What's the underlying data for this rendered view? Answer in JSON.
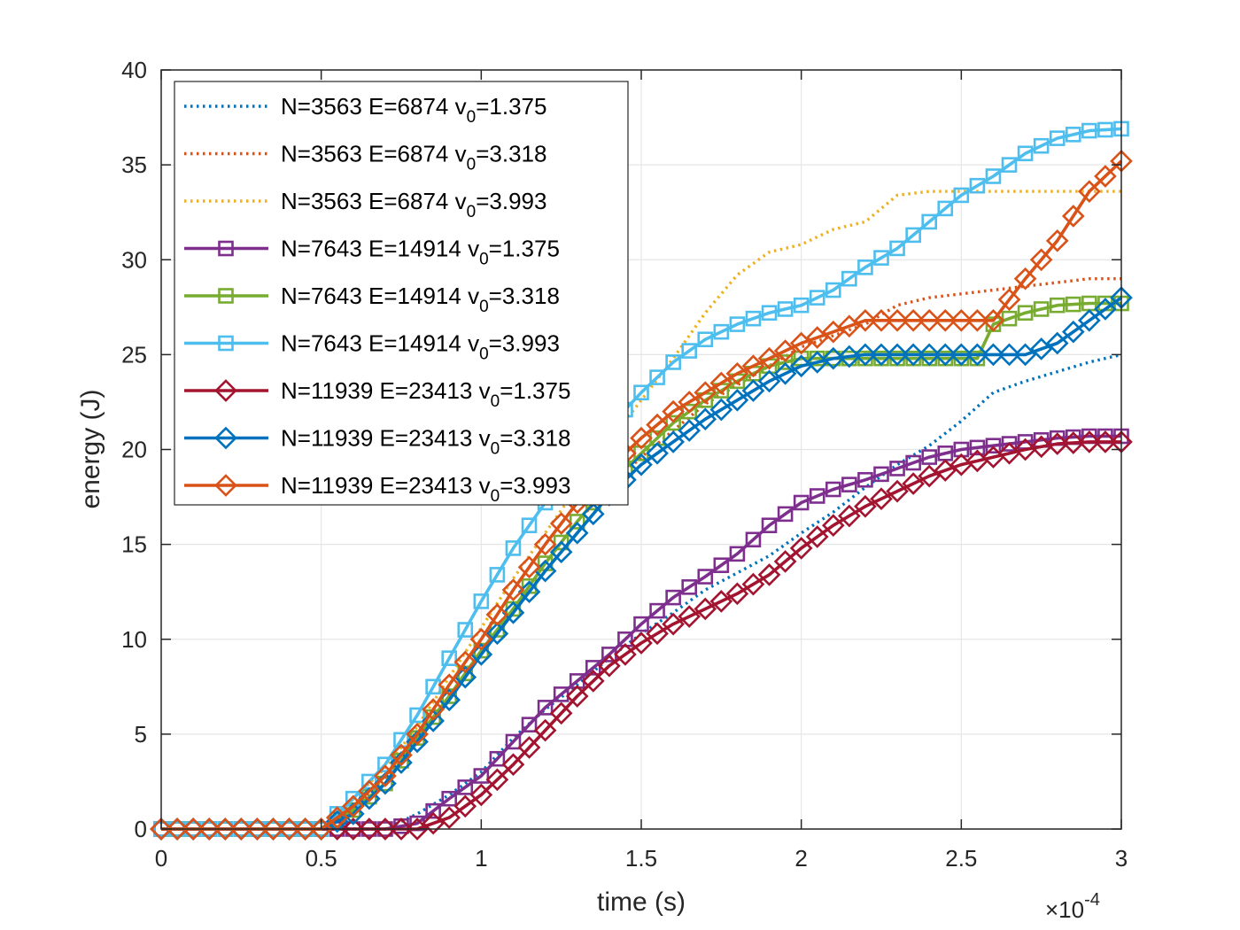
{
  "chart_data": {
    "type": "line",
    "xlabel": "time (s)",
    "ylabel": "energy (J)",
    "x_multiplier_label": "×10",
    "x_multiplier_exponent": "-4",
    "xlim": [
      0,
      3
    ],
    "ylim": [
      0,
      40
    ],
    "xticks": [
      0,
      0.5,
      1,
      1.5,
      2,
      2.5,
      3
    ],
    "xtick_labels": [
      "0",
      "0.5",
      "1",
      "1.5",
      "2",
      "2.5",
      "3"
    ],
    "yticks": [
      0,
      5,
      10,
      15,
      20,
      25,
      30,
      35,
      40
    ],
    "ytick_labels": [
      "0",
      "5",
      "10",
      "15",
      "20",
      "25",
      "30",
      "35",
      "40"
    ],
    "grid": true,
    "legend_position": "top-left",
    "series": [
      {
        "name": "N=3563 E=6874 v0=1.375",
        "label_main": "N=3563 E=6874 v",
        "label_sub": "0",
        "label_tail": "=1.375",
        "color": "#0072BD",
        "style": "dotted",
        "marker": "none",
        "x": [
          0,
          0.5,
          0.7,
          0.8,
          0.9,
          1.0,
          1.1,
          1.2,
          1.3,
          1.4,
          1.5,
          1.6,
          1.7,
          1.8,
          1.9,
          2.0,
          2.1,
          2.2,
          2.3,
          2.4,
          2.5,
          2.6,
          2.7,
          2.8,
          2.9,
          3.0
        ],
        "y": [
          0,
          0,
          0,
          0.8,
          1.8,
          3.0,
          4.8,
          6.3,
          7.6,
          9.0,
          10.3,
          11.4,
          12.6,
          13.5,
          14.4,
          15.6,
          16.7,
          18.0,
          19.2,
          20.2,
          21.5,
          23.0,
          23.6,
          24.1,
          24.6,
          25.0
        ]
      },
      {
        "name": "N=3563 E=6874 v0=3.318",
        "label_main": "N=3563 E=6874 v",
        "label_sub": "0",
        "label_tail": "=3.318",
        "color": "#D95319",
        "style": "dotted",
        "marker": "none",
        "x": [
          0,
          0.5,
          0.6,
          0.7,
          0.8,
          0.9,
          1.0,
          1.1,
          1.2,
          1.3,
          1.4,
          1.5,
          1.6,
          1.7,
          1.8,
          1.9,
          2.0,
          2.1,
          2.2,
          2.3,
          2.4,
          2.5,
          2.6,
          2.7,
          2.8,
          2.9,
          3.0
        ],
        "y": [
          0,
          0,
          1.2,
          2.6,
          4.6,
          7.0,
          9.2,
          11.6,
          14.0,
          16.2,
          18.0,
          19.6,
          21.0,
          22.4,
          23.4,
          24.4,
          25.4,
          26.0,
          26.6,
          27.6,
          28.0,
          28.2,
          28.4,
          28.6,
          28.8,
          29.0,
          29.0
        ]
      },
      {
        "name": "N=3563 E=6874 v0=3.993",
        "label_main": "N=3563 E=6874 v",
        "label_sub": "0",
        "label_tail": "=3.993",
        "color": "#EDB120",
        "style": "dotted",
        "marker": "none",
        "x": [
          0,
          0.5,
          0.6,
          0.7,
          0.8,
          0.9,
          1.0,
          1.1,
          1.2,
          1.3,
          1.4,
          1.5,
          1.6,
          1.7,
          1.8,
          1.9,
          2.0,
          2.1,
          2.2,
          2.3,
          2.4,
          2.5,
          2.6,
          2.7,
          2.8,
          2.9,
          3.0
        ],
        "y": [
          0,
          0,
          1.6,
          3.2,
          5.4,
          8.0,
          10.6,
          13.2,
          15.6,
          18.0,
          20.4,
          22.6,
          24.8,
          27.2,
          29.2,
          30.4,
          30.8,
          31.6,
          32.0,
          33.4,
          33.6,
          33.6,
          33.6,
          33.6,
          33.6,
          33.6,
          33.6
        ]
      },
      {
        "name": "N=7643 E=14914 v0=1.375",
        "label_main": "N=7643 E=14914 v",
        "label_sub": "0",
        "label_tail": "=1.375",
        "color": "#7E2F8E",
        "style": "solid",
        "marker": "square",
        "x": [
          0,
          0.5,
          0.6,
          0.7,
          0.8,
          0.9,
          1.0,
          1.1,
          1.2,
          1.3,
          1.4,
          1.5,
          1.6,
          1.7,
          1.8,
          1.9,
          2.0,
          2.1,
          2.2,
          2.3,
          2.4,
          2.5,
          2.6,
          2.7,
          2.8,
          2.9,
          3.0
        ],
        "y": [
          0,
          0,
          0,
          0,
          0.3,
          1.6,
          2.8,
          4.6,
          6.4,
          7.8,
          9.2,
          10.8,
          12.2,
          13.3,
          14.5,
          16.0,
          17.2,
          17.9,
          18.4,
          19.0,
          19.6,
          20.0,
          20.2,
          20.4,
          20.6,
          20.7,
          20.7
        ]
      },
      {
        "name": "N=7643 E=14914 v0=3.318",
        "label_main": "N=7643 E=14914 v",
        "label_sub": "0",
        "label_tail": "=3.318",
        "color": "#77AC30",
        "style": "solid",
        "marker": "square",
        "x": [
          0,
          0.5,
          0.6,
          0.7,
          0.8,
          0.9,
          1.0,
          1.1,
          1.2,
          1.3,
          1.4,
          1.5,
          1.6,
          1.7,
          1.8,
          1.9,
          2.0,
          2.1,
          2.2,
          2.3,
          2.4,
          2.5,
          2.55,
          2.6,
          2.7,
          2.8,
          2.9,
          3.0
        ],
        "y": [
          0,
          0,
          1.0,
          2.4,
          4.8,
          7.0,
          9.4,
          11.6,
          14.0,
          16.2,
          18.2,
          19.8,
          21.4,
          22.6,
          23.6,
          24.4,
          24.8,
          24.8,
          24.8,
          24.8,
          24.8,
          24.8,
          24.8,
          26.6,
          27.2,
          27.6,
          27.7,
          27.7
        ]
      },
      {
        "name": "N=7643 E=14914 v0=3.993",
        "label_main": "N=7643 E=14914 v",
        "label_sub": "0",
        "label_tail": "=3.993",
        "color": "#4DBEEE",
        "style": "solid",
        "marker": "square",
        "x": [
          0,
          0.5,
          0.6,
          0.7,
          0.8,
          0.9,
          1.0,
          1.1,
          1.2,
          1.3,
          1.4,
          1.5,
          1.6,
          1.7,
          1.8,
          1.9,
          2.0,
          2.1,
          2.2,
          2.3,
          2.4,
          2.5,
          2.6,
          2.7,
          2.8,
          2.9,
          3.0
        ],
        "y": [
          0,
          0,
          1.6,
          3.4,
          6.0,
          9.0,
          12.0,
          14.8,
          17.2,
          19.4,
          21.2,
          23.0,
          24.6,
          25.8,
          26.6,
          27.2,
          27.6,
          28.4,
          29.6,
          30.6,
          32.0,
          33.4,
          34.4,
          35.6,
          36.4,
          36.8,
          36.9
        ]
      },
      {
        "name": "N=11939 E=23413 v0=1.375",
        "label_main": "N=11939 E=23413 v",
        "label_sub": "0",
        "label_tail": "=1.375",
        "color": "#A2142F",
        "style": "solid",
        "marker": "diamond",
        "x": [
          0,
          0.5,
          0.6,
          0.7,
          0.8,
          0.9,
          1.0,
          1.1,
          1.2,
          1.3,
          1.4,
          1.5,
          1.6,
          1.7,
          1.8,
          1.9,
          2.0,
          2.1,
          2.2,
          2.3,
          2.4,
          2.5,
          2.6,
          2.7,
          2.8,
          2.9,
          3.0
        ],
        "y": [
          0,
          0,
          0,
          0,
          0,
          0.6,
          1.8,
          3.4,
          5.2,
          7.0,
          8.6,
          9.8,
          10.8,
          11.6,
          12.4,
          13.4,
          14.8,
          16.0,
          17.0,
          17.8,
          18.6,
          19.2,
          19.6,
          20.0,
          20.3,
          20.4,
          20.4
        ]
      },
      {
        "name": "N=11939 E=23413 v0=3.318",
        "label_main": "N=11939 E=23413 v",
        "label_sub": "0",
        "label_tail": "=3.318",
        "color": "#0072BD",
        "style": "solid",
        "marker": "diamond",
        "x": [
          0,
          0.5,
          0.6,
          0.7,
          0.8,
          0.9,
          1.0,
          1.1,
          1.2,
          1.3,
          1.4,
          1.5,
          1.6,
          1.7,
          1.8,
          1.9,
          2.0,
          2.1,
          2.2,
          2.3,
          2.4,
          2.5,
          2.6,
          2.7,
          2.8,
          2.9,
          3.0
        ],
        "y": [
          0,
          0,
          0.8,
          2.4,
          4.6,
          6.8,
          9.2,
          11.4,
          13.6,
          15.6,
          17.6,
          19.2,
          20.4,
          21.6,
          22.6,
          23.6,
          24.4,
          24.8,
          25.0,
          25.0,
          25.0,
          25.0,
          25.0,
          25.0,
          25.6,
          26.8,
          28.0
        ]
      },
      {
        "name": "N=11939 E=23413 v0=3.993",
        "label_main": "N=11939 E=23413 v",
        "label_sub": "0",
        "label_tail": "=3.993",
        "color": "#D95319",
        "style": "solid",
        "marker": "diamond",
        "x": [
          0,
          0.5,
          0.6,
          0.7,
          0.8,
          0.9,
          1.0,
          1.1,
          1.2,
          1.3,
          1.4,
          1.5,
          1.6,
          1.7,
          1.8,
          1.9,
          2.0,
          2.1,
          2.2,
          2.3,
          2.4,
          2.5,
          2.6,
          2.7,
          2.8,
          2.9,
          3.0
        ],
        "y": [
          0,
          0,
          1.2,
          2.8,
          5.0,
          7.6,
          10.0,
          12.6,
          15.0,
          17.2,
          19.0,
          20.6,
          22.0,
          23.0,
          24.0,
          24.8,
          25.6,
          26.2,
          26.8,
          26.8,
          26.8,
          26.8,
          26.8,
          29.0,
          31.0,
          33.6,
          35.2
        ]
      }
    ]
  }
}
